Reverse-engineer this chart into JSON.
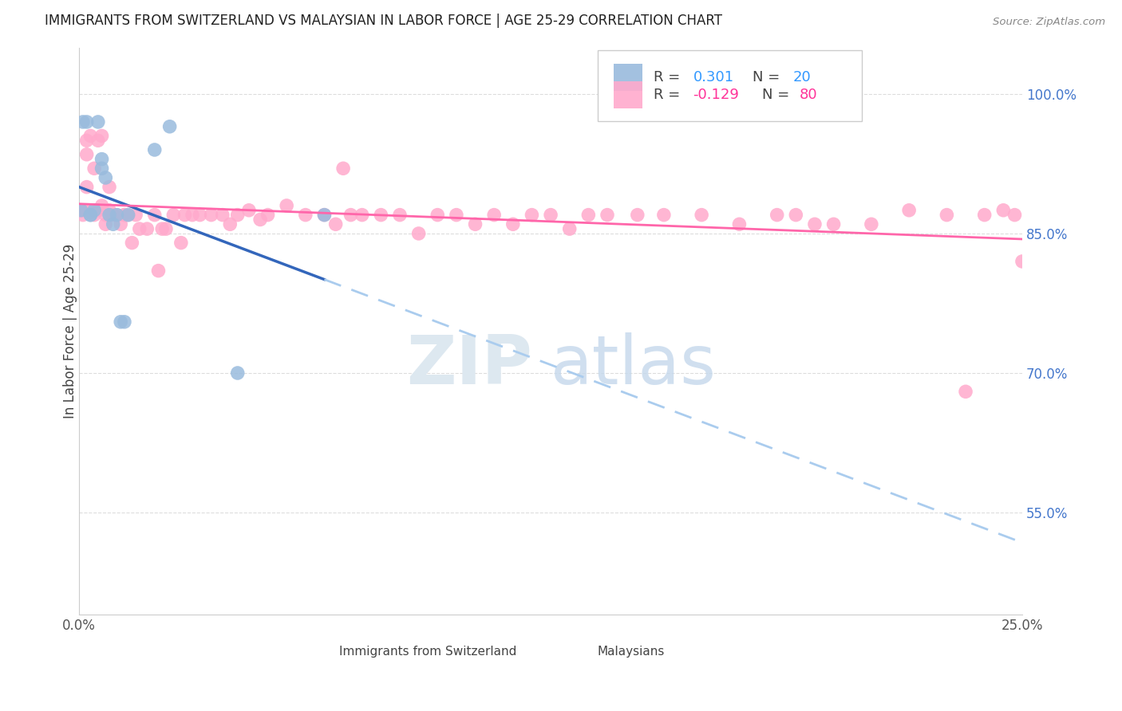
{
  "title": "IMMIGRANTS FROM SWITZERLAND VS MALAYSIAN IN LABOR FORCE | AGE 25-29 CORRELATION CHART",
  "source": "Source: ZipAtlas.com",
  "ylabel": "In Labor Force | Age 25-29",
  "xmin": 0.0,
  "xmax": 0.25,
  "ymin": 0.44,
  "ymax": 1.05,
  "blue_color": "#99BBDD",
  "pink_color": "#FFAACC",
  "trendline_blue": "#3366BB",
  "trendline_pink": "#FF66AA",
  "trendline_dashed_blue": "#AACCEE",
  "swiss_x": [
    0.0005,
    0.001,
    0.002,
    0.003,
    0.003,
    0.004,
    0.005,
    0.006,
    0.006,
    0.007,
    0.008,
    0.009,
    0.01,
    0.011,
    0.012,
    0.013,
    0.02,
    0.024,
    0.042,
    0.065
  ],
  "swiss_y": [
    0.875,
    0.97,
    0.97,
    0.87,
    0.87,
    0.875,
    0.97,
    0.93,
    0.92,
    0.91,
    0.87,
    0.86,
    0.87,
    0.755,
    0.755,
    0.87,
    0.94,
    0.965,
    0.7,
    0.87
  ],
  "malay_x": [
    0.0005,
    0.001,
    0.001,
    0.002,
    0.002,
    0.002,
    0.003,
    0.003,
    0.004,
    0.004,
    0.005,
    0.005,
    0.006,
    0.006,
    0.007,
    0.007,
    0.008,
    0.008,
    0.009,
    0.01,
    0.011,
    0.012,
    0.012,
    0.013,
    0.014,
    0.015,
    0.016,
    0.018,
    0.02,
    0.021,
    0.022,
    0.023,
    0.025,
    0.027,
    0.028,
    0.03,
    0.032,
    0.035,
    0.038,
    0.04,
    0.042,
    0.045,
    0.048,
    0.05,
    0.055,
    0.06,
    0.065,
    0.068,
    0.07,
    0.072,
    0.075,
    0.08,
    0.085,
    0.09,
    0.095,
    0.1,
    0.105,
    0.11,
    0.115,
    0.12,
    0.125,
    0.13,
    0.135,
    0.14,
    0.148,
    0.155,
    0.165,
    0.175,
    0.185,
    0.19,
    0.195,
    0.2,
    0.21,
    0.22,
    0.23,
    0.235,
    0.24,
    0.245,
    0.248,
    0.25
  ],
  "malay_y": [
    0.875,
    0.875,
    0.87,
    0.935,
    0.95,
    0.9,
    0.955,
    0.875,
    0.92,
    0.87,
    0.95,
    0.875,
    0.955,
    0.88,
    0.87,
    0.86,
    0.875,
    0.9,
    0.87,
    0.87,
    0.86,
    0.87,
    0.87,
    0.87,
    0.84,
    0.87,
    0.855,
    0.855,
    0.87,
    0.81,
    0.855,
    0.855,
    0.87,
    0.84,
    0.87,
    0.87,
    0.87,
    0.87,
    0.87,
    0.86,
    0.87,
    0.875,
    0.865,
    0.87,
    0.88,
    0.87,
    0.87,
    0.86,
    0.92,
    0.87,
    0.87,
    0.87,
    0.87,
    0.85,
    0.87,
    0.87,
    0.86,
    0.87,
    0.86,
    0.87,
    0.87,
    0.855,
    0.87,
    0.87,
    0.87,
    0.87,
    0.87,
    0.86,
    0.87,
    0.87,
    0.86,
    0.86,
    0.86,
    0.875,
    0.87,
    0.68,
    0.87,
    0.875,
    0.87,
    0.82
  ],
  "background_color": "#FFFFFF",
  "grid_color": "#DDDDDD",
  "ytick_values": [
    0.55,
    0.7,
    0.85,
    1.0
  ],
  "ytick_labels": [
    "55.0%",
    "70.0%",
    "85.0%",
    "100.0%"
  ],
  "xtick_values": [
    0.0,
    0.05,
    0.1,
    0.15,
    0.2,
    0.25
  ],
  "xtick_labels": [
    "0.0%",
    "",
    "",
    "",
    "",
    "25.0%"
  ]
}
